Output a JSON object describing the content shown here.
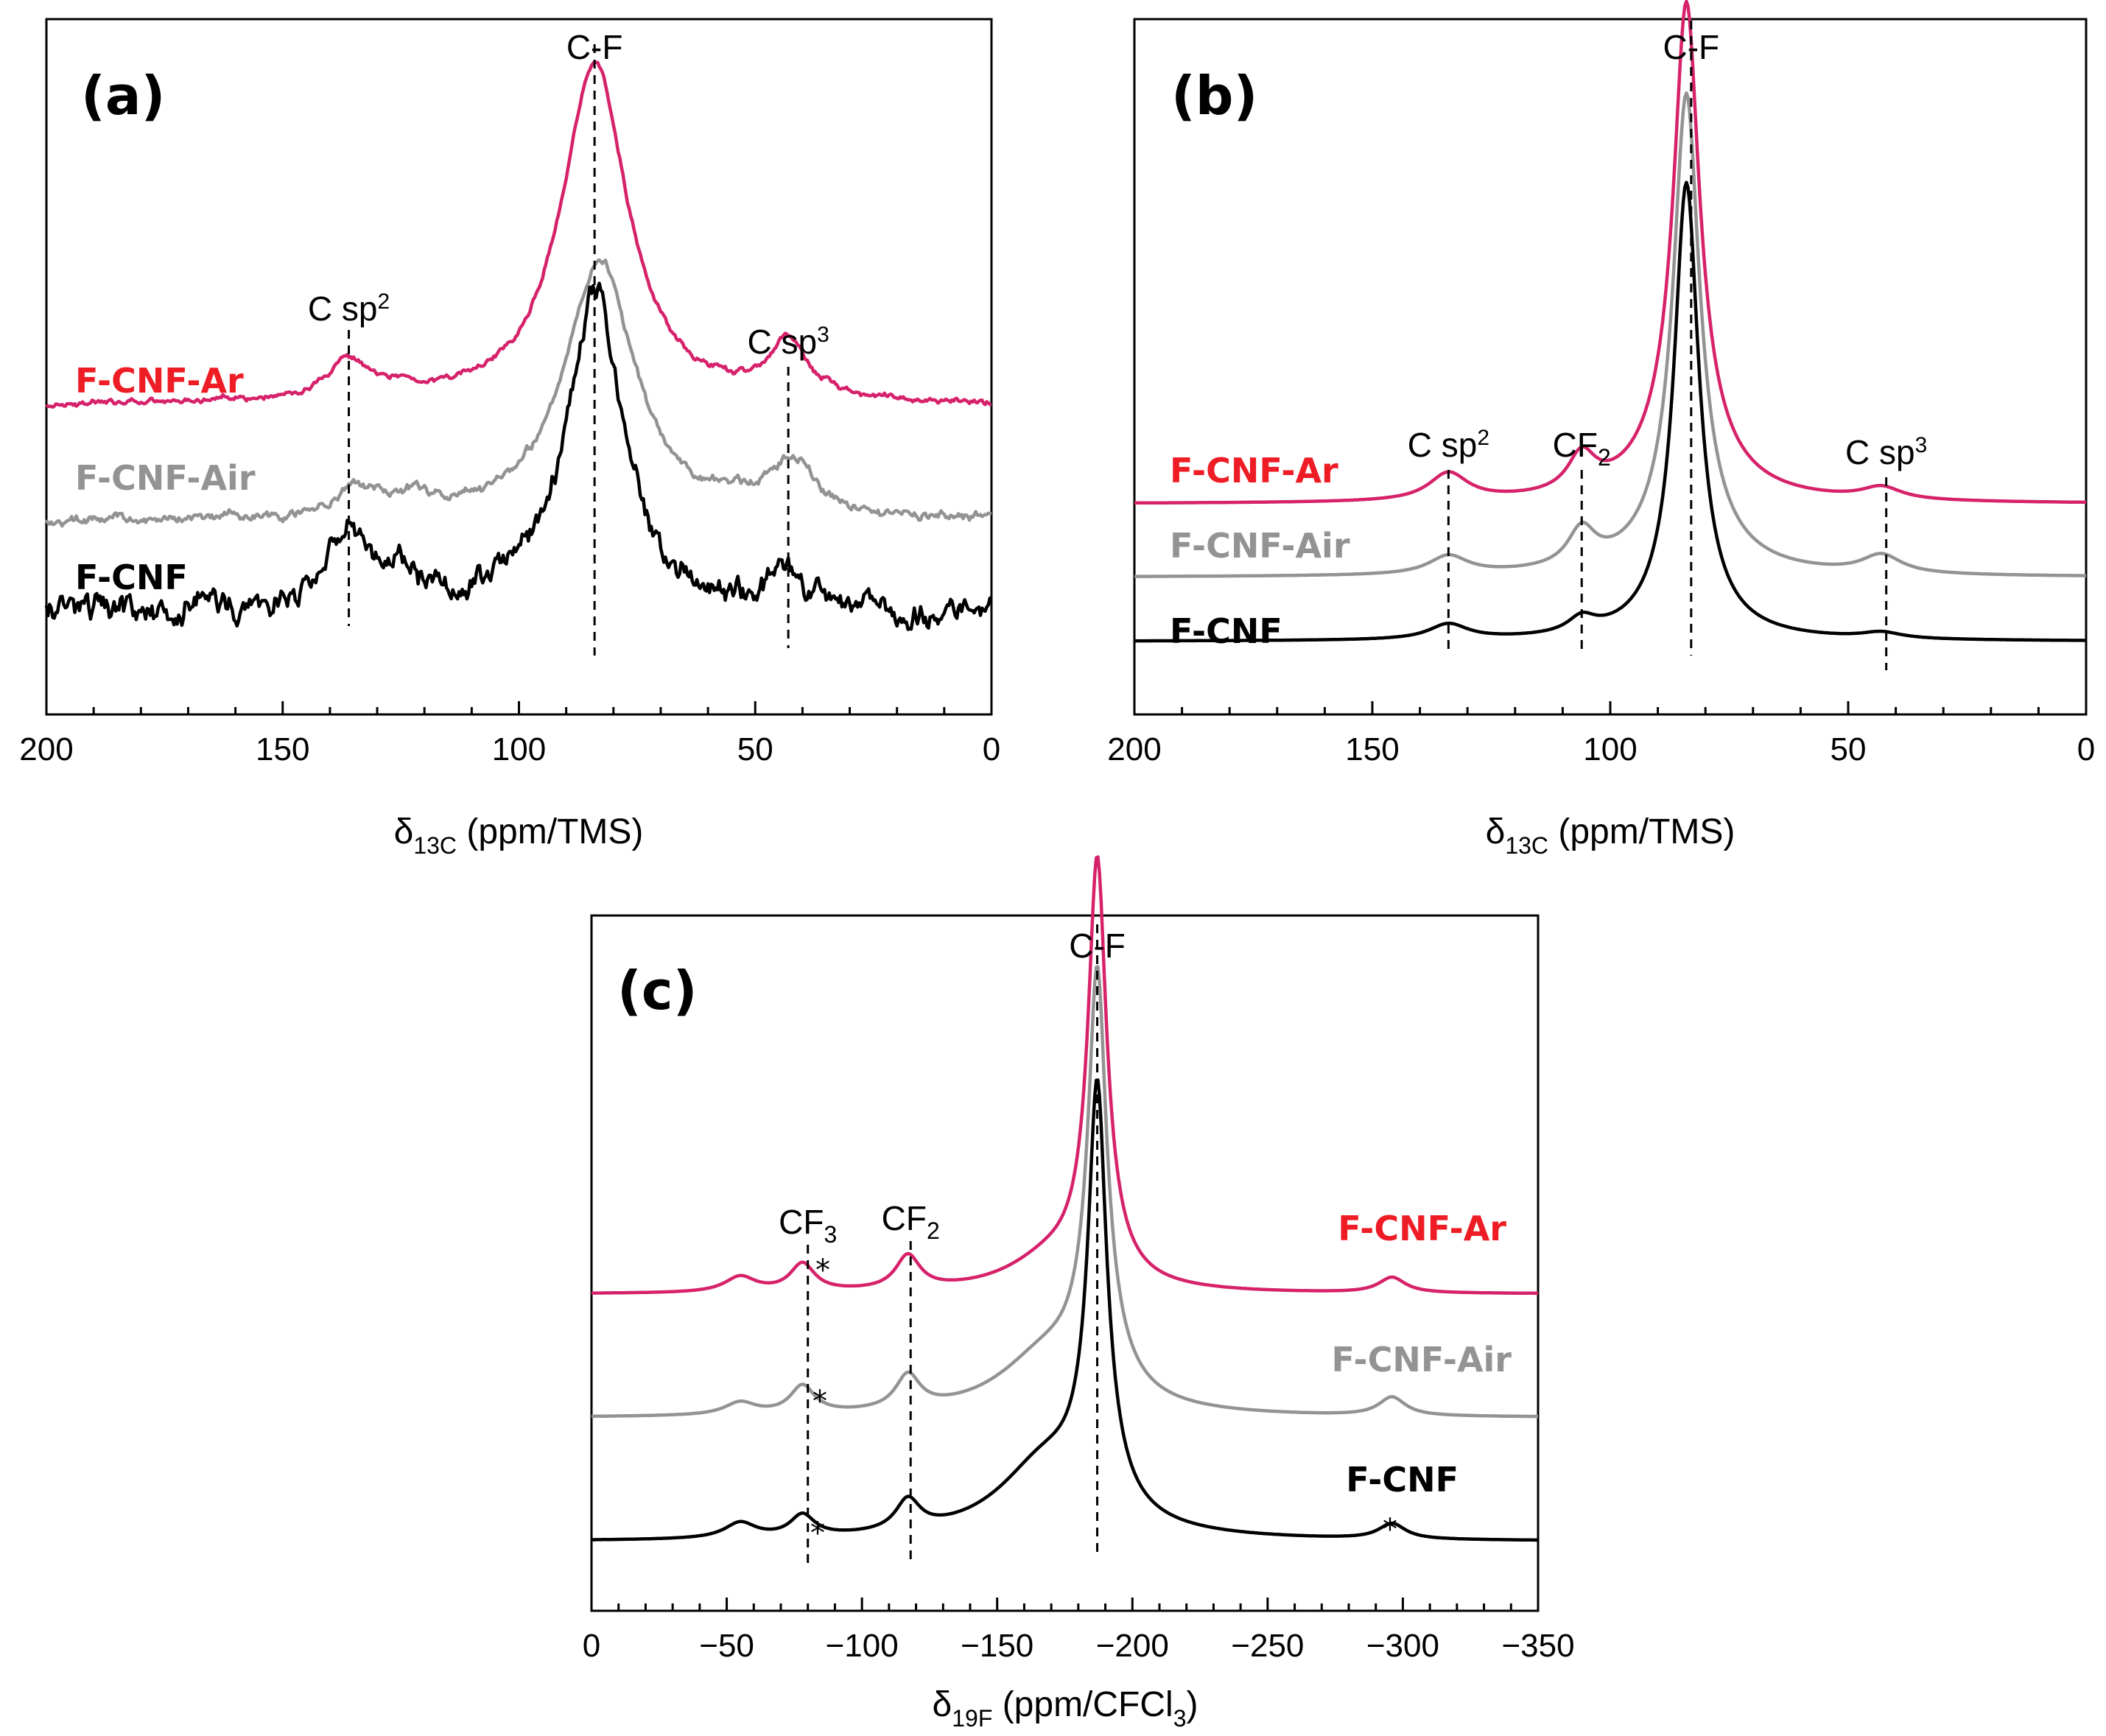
{
  "colors": {
    "F-CNF-Ar": "#d6226b",
    "F-CNF-Ar-label": "#ee1c24",
    "F-CNF-Air": "#939393",
    "F-CNF": "#000000"
  },
  "chart_data": [
    {
      "id": "a",
      "type": "line",
      "panel_label": "(a)",
      "xlabel_main": "δ",
      "xlabel_sub": "13C",
      "xlabel_tail": " (ppm/TMS)",
      "xlim": [
        200,
        0
      ],
      "xticks": [
        200,
        150,
        100,
        50,
        0
      ],
      "tick_labels": [
        "200",
        "150",
        "100",
        "50",
        "0"
      ],
      "ylim": [
        0,
        100
      ],
      "series": [
        {
          "name": "F-CNF-Ar",
          "baseline": 42,
          "noise": 0.3,
          "peaks": [
            [
              163,
              0.8,
              3
            ],
            [
              136,
              6.5,
              5
            ],
            [
              124,
              1.5,
              5
            ],
            [
              84,
              56,
              8.5
            ],
            [
              43,
              9,
              5
            ]
          ]
        },
        {
          "name": "F-CNF-Air",
          "baseline": 23,
          "noise": 0.5,
          "peaks": [
            [
              134,
              5,
              6
            ],
            [
              122,
              2.5,
              5
            ],
            [
              83,
              43,
              9
            ],
            [
              42,
              9,
              6
            ],
            [
              55,
              1.5,
              4
            ]
          ]
        },
        {
          "name": "F-CNF",
          "baseline": 8,
          "noise": 1.4,
          "peaks": [
            [
              165,
              1.5,
              6
            ],
            [
              136,
              13,
              5
            ],
            [
              125,
              5,
              4
            ],
            [
              84,
              53,
              7.5
            ],
            [
              43,
              7.5,
              4
            ]
          ]
        }
      ],
      "series_labels": [
        "F-CNF-Ar",
        "F-CNF-Air",
        "F-CNF"
      ],
      "markers": [
        {
          "x": 136,
          "label": "C sp",
          "sup": "2",
          "sub": ""
        },
        {
          "x": 84,
          "label": "C-F",
          "sup": "",
          "sub": ""
        },
        {
          "x": 43,
          "label": "C sp",
          "sup": "3",
          "sub": ""
        }
      ]
    },
    {
      "id": "b",
      "type": "line",
      "panel_label": "(b)",
      "xlabel_main": "δ",
      "xlabel_sub": "13C",
      "xlabel_tail": " (ppm/TMS)",
      "xlim": [
        200,
        0
      ],
      "xticks": [
        200,
        150,
        100,
        50,
        0
      ],
      "tick_labels": [
        "200",
        "150",
        "100",
        "50",
        "0"
      ],
      "ylim": [
        0,
        100
      ],
      "series": [
        {
          "name": "F-CNF-Ar",
          "baseline": 26,
          "noise": 0,
          "peaks": [
            [
              134,
              4.5,
              5
            ],
            [
              106,
              6,
              3.5
            ],
            [
              84,
              70,
              3.2
            ],
            [
              84,
              12,
              9
            ],
            [
              43,
              2,
              5
            ]
          ]
        },
        {
          "name": "F-CNF-Air",
          "baseline": 14,
          "noise": 0,
          "peaks": [
            [
              134,
              3,
              5
            ],
            [
              106,
              6,
              3.5
            ],
            [
              84,
              69,
              3.2
            ],
            [
              84,
              10,
              9
            ],
            [
              43,
              3,
              5
            ]
          ]
        },
        {
          "name": "F-CNF",
          "baseline": 3.5,
          "noise": 0,
          "peaks": [
            [
              134,
              2.5,
              5
            ],
            [
              106,
              2.5,
              3.5
            ],
            [
              84,
              67,
              3
            ],
            [
              84,
              8,
              8
            ],
            [
              43,
              1,
              5
            ]
          ]
        }
      ],
      "series_labels": [
        "F-CNF-Ar",
        "F-CNF-Air",
        "F-CNF"
      ],
      "markers": [
        {
          "x": 134,
          "label": "C sp",
          "sup": "2",
          "sub": ""
        },
        {
          "x": 106,
          "label": "CF",
          "sup": "",
          "sub": "2"
        },
        {
          "x": 83,
          "label": "C-F",
          "sup": "",
          "sub": ""
        },
        {
          "x": 42,
          "label": "C sp",
          "sup": "3",
          "sub": ""
        }
      ]
    },
    {
      "id": "c",
      "type": "line",
      "panel_label": "(c)",
      "xlabel_main": "δ",
      "xlabel_sub": "19F",
      "xlabel_tail": " (ppm/CFCl",
      "xlabel_tail_sub": "3",
      "xlabel_end": ")",
      "xlim": [
        0,
        -350
      ],
      "xticks": [
        0,
        -50,
        -100,
        -150,
        -200,
        -250,
        -300,
        -350
      ],
      "tick_labels": [
        "0",
        "−50",
        "−100",
        "−150",
        "−200",
        "−250",
        "−300",
        "−350"
      ],
      "ylim": [
        0,
        100
      ],
      "series": [
        {
          "name": "F-CNF-Ar",
          "baseline": 42,
          "noise": 0,
          "peaks": [
            [
              -55,
              2.5,
              7
            ],
            [
              -78,
              4.5,
              5.5
            ],
            [
              -117,
              5.5,
              5.5
            ],
            [
              -187,
              56,
              3.8
            ],
            [
              -170,
              5,
              20
            ],
            [
              -187,
              12,
              8
            ],
            [
              -296,
              2.5,
              6
            ]
          ]
        },
        {
          "name": "F-CNF-Air",
          "baseline": 22,
          "noise": 0,
          "peaks": [
            [
              -55,
              2,
              7
            ],
            [
              -78,
              4.5,
              5.5
            ],
            [
              -117,
              5.5,
              5.5
            ],
            [
              -187,
              54,
              3.8
            ],
            [
              -168,
              9,
              22
            ],
            [
              -187,
              14,
              9
            ],
            [
              -296,
              3,
              6
            ]
          ]
        },
        {
          "name": "F-CNF",
          "baseline": 2,
          "noise": 0,
          "peaks": [
            [
              -55,
              2.5,
              7
            ],
            [
              -78,
              3.5,
              5.5
            ],
            [
              -117,
              5,
              5.5
            ],
            [
              -187,
              54,
              3.8
            ],
            [
              -168,
              12,
              22
            ],
            [
              -187,
              14,
              8
            ],
            [
              -296,
              2.5,
              6
            ]
          ]
        }
      ],
      "series_labels": [
        "F-CNF-Ar",
        "F-CNF-Air",
        "F-CNF"
      ],
      "markers": [
        {
          "x": -80,
          "label": "CF",
          "sup": "",
          "sub": "3"
        },
        {
          "x": -118,
          "label": "CF",
          "sup": "",
          "sub": "2"
        },
        {
          "x": -187,
          "label": "C-F",
          "sup": "",
          "sub": ""
        }
      ],
      "asterisk": "*"
    }
  ]
}
